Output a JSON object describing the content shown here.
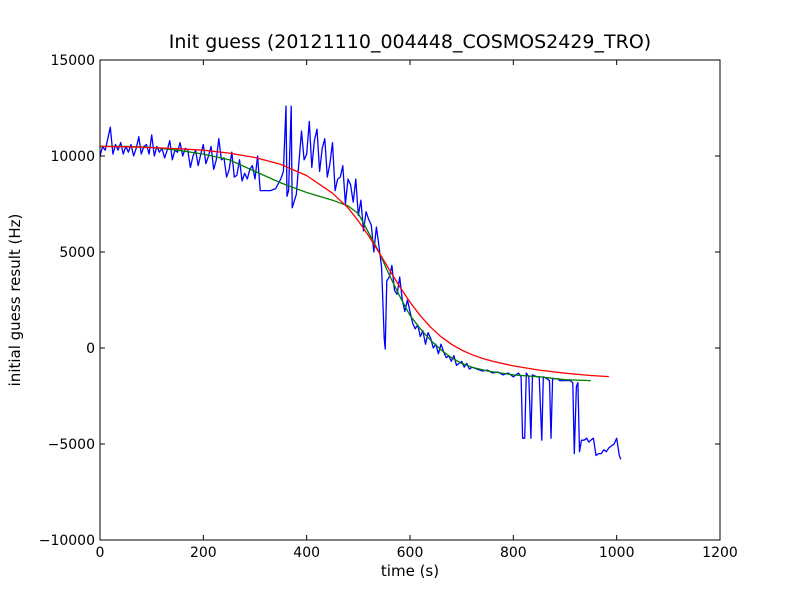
{
  "chart_data": {
    "type": "line",
    "title": "Init guess (20121110_004448_COSMOS2429_TRO)",
    "xlabel": "time (s)",
    "ylabel": "initial guess result (Hz)",
    "xlim": [
      0,
      1200
    ],
    "ylim": [
      -10000,
      15000
    ],
    "xticks": [
      0,
      200,
      400,
      600,
      800,
      1000,
      1200
    ],
    "yticks": [
      -10000,
      -5000,
      0,
      5000,
      10000,
      15000
    ],
    "grid": false,
    "legend": "none",
    "series": [
      {
        "color": "#0000ff",
        "points": [
          [
            0,
            10000
          ],
          [
            5,
            10500
          ],
          [
            10,
            10300
          ],
          [
            15,
            10900
          ],
          [
            20,
            11500
          ],
          [
            25,
            10100
          ],
          [
            30,
            10600
          ],
          [
            35,
            10300
          ],
          [
            40,
            10700
          ],
          [
            45,
            10100
          ],
          [
            50,
            10500
          ],
          [
            55,
            10200
          ],
          [
            60,
            10600
          ],
          [
            65,
            10000
          ],
          [
            70,
            10400
          ],
          [
            75,
            11000
          ],
          [
            80,
            10100
          ],
          [
            85,
            10500
          ],
          [
            90,
            10600
          ],
          [
            95,
            10100
          ],
          [
            100,
            11100
          ],
          [
            105,
            10000
          ],
          [
            110,
            10500
          ],
          [
            115,
            10200
          ],
          [
            120,
            10400
          ],
          [
            125,
            9900
          ],
          [
            130,
            10300
          ],
          [
            135,
            10800
          ],
          [
            140,
            9800
          ],
          [
            145,
            10300
          ],
          [
            150,
            10200
          ],
          [
            155,
            10700
          ],
          [
            160,
            10000
          ],
          [
            165,
            10400
          ],
          [
            170,
            10300
          ],
          [
            175,
            9400
          ],
          [
            180,
            10000
          ],
          [
            185,
            10300
          ],
          [
            190,
            9500
          ],
          [
            195,
            10100
          ],
          [
            200,
            10600
          ],
          [
            205,
            9600
          ],
          [
            210,
            10000
          ],
          [
            215,
            10500
          ],
          [
            220,
            9300
          ],
          [
            225,
            9800
          ],
          [
            230,
            10900
          ],
          [
            235,
            9800
          ],
          [
            240,
            9900
          ],
          [
            245,
            8900
          ],
          [
            250,
            9300
          ],
          [
            255,
            10200
          ],
          [
            260,
            8900
          ],
          [
            265,
            9000
          ],
          [
            270,
            9800
          ],
          [
            275,
            8700
          ],
          [
            280,
            9100
          ],
          [
            285,
            8800
          ],
          [
            290,
            9300
          ],
          [
            295,
            9500
          ],
          [
            300,
            8800
          ],
          [
            305,
            10000
          ],
          [
            310,
            8200
          ],
          [
            320,
            8200
          ],
          [
            330,
            8200
          ],
          [
            340,
            8300
          ],
          [
            350,
            8800
          ],
          [
            355,
            9200
          ],
          [
            360,
            12600
          ],
          [
            362,
            7900
          ],
          [
            365,
            8200
          ],
          [
            370,
            12600
          ],
          [
            372,
            7300
          ],
          [
            380,
            8000
          ],
          [
            390,
            11300
          ],
          [
            395,
            9800
          ],
          [
            400,
            10100
          ],
          [
            405,
            11800
          ],
          [
            410,
            9400
          ],
          [
            415,
            10800
          ],
          [
            420,
            11400
          ],
          [
            425,
            9200
          ],
          [
            430,
            10400
          ],
          [
            435,
            10900
          ],
          [
            440,
            8900
          ],
          [
            445,
            9600
          ],
          [
            450,
            10700
          ],
          [
            455,
            8200
          ],
          [
            460,
            8800
          ],
          [
            465,
            8900
          ],
          [
            470,
            9500
          ],
          [
            475,
            7500
          ],
          [
            480,
            8800
          ],
          [
            485,
            8500
          ],
          [
            490,
            7600
          ],
          [
            495,
            8800
          ],
          [
            500,
            6900
          ],
          [
            505,
            7700
          ],
          [
            510,
            6100
          ],
          [
            515,
            7100
          ],
          [
            520,
            6700
          ],
          [
            525,
            6400
          ],
          [
            530,
            5000
          ],
          [
            535,
            6300
          ],
          [
            540,
            5300
          ],
          [
            545,
            4200
          ],
          [
            550,
            500
          ],
          [
            552,
            -50
          ],
          [
            555,
            3500
          ],
          [
            560,
            3700
          ],
          [
            565,
            4300
          ],
          [
            570,
            3000
          ],
          [
            575,
            2800
          ],
          [
            580,
            3700
          ],
          [
            585,
            2500
          ],
          [
            590,
            1900
          ],
          [
            595,
            2500
          ],
          [
            600,
            1900
          ],
          [
            605,
            1300
          ],
          [
            610,
            1000
          ],
          [
            615,
            1200
          ],
          [
            620,
            600
          ],
          [
            625,
            900
          ],
          [
            630,
            200
          ],
          [
            635,
            800
          ],
          [
            640,
            500
          ],
          [
            645,
            0
          ],
          [
            650,
            200
          ],
          [
            655,
            -300
          ],
          [
            660,
            200
          ],
          [
            665,
            -200
          ],
          [
            670,
            -500
          ],
          [
            675,
            -400
          ],
          [
            680,
            -700
          ],
          [
            685,
            -400
          ],
          [
            690,
            -900
          ],
          [
            695,
            -800
          ],
          [
            700,
            -700
          ],
          [
            705,
            -1000
          ],
          [
            710,
            -800
          ],
          [
            715,
            -1100
          ],
          [
            720,
            -1000
          ],
          [
            730,
            -1100
          ],
          [
            740,
            -1200
          ],
          [
            750,
            -1150
          ],
          [
            760,
            -1300
          ],
          [
            770,
            -1250
          ],
          [
            780,
            -1400
          ],
          [
            790,
            -1300
          ],
          [
            800,
            -1500
          ],
          [
            810,
            -1300
          ],
          [
            815,
            -1500
          ],
          [
            818,
            -4700
          ],
          [
            822,
            -4700
          ],
          [
            825,
            -1300
          ],
          [
            830,
            -1500
          ],
          [
            834,
            -4700
          ],
          [
            837,
            -1400
          ],
          [
            845,
            -1500
          ],
          [
            850,
            -1500
          ],
          [
            855,
            -4800
          ],
          [
            858,
            -1500
          ],
          [
            865,
            -1600
          ],
          [
            870,
            -1700
          ],
          [
            873,
            -4700
          ],
          [
            876,
            -1600
          ],
          [
            885,
            -1600
          ],
          [
            890,
            -1700
          ],
          [
            900,
            -1700
          ],
          [
            910,
            -1700
          ],
          [
            915,
            -1800
          ],
          [
            918,
            -5500
          ],
          [
            922,
            -2000
          ],
          [
            925,
            -1800
          ],
          [
            928,
            -5400
          ],
          [
            932,
            -4800
          ],
          [
            937,
            -4800
          ],
          [
            942,
            -4700
          ],
          [
            946,
            -4900
          ],
          [
            950,
            -4800
          ],
          [
            955,
            -4700
          ],
          [
            960,
            -5600
          ],
          [
            965,
            -5500
          ],
          [
            970,
            -5500
          ],
          [
            975,
            -5300
          ],
          [
            980,
            -5400
          ],
          [
            985,
            -5200
          ],
          [
            990,
            -5100
          ],
          [
            995,
            -5000
          ],
          [
            1000,
            -4700
          ],
          [
            1005,
            -5600
          ],
          [
            1008,
            -5800
          ]
        ]
      },
      {
        "color": "#008000",
        "points": [
          [
            0,
            10500
          ],
          [
            50,
            10500
          ],
          [
            100,
            10450
          ],
          [
            150,
            10300
          ],
          [
            200,
            10100
          ],
          [
            250,
            9800
          ],
          [
            300,
            9200
          ],
          [
            350,
            8600
          ],
          [
            400,
            8100
          ],
          [
            450,
            7700
          ],
          [
            480,
            7400
          ],
          [
            500,
            7000
          ],
          [
            520,
            6000
          ],
          [
            540,
            5000
          ],
          [
            560,
            3800
          ],
          [
            580,
            2700
          ],
          [
            600,
            1700
          ],
          [
            620,
            1000
          ],
          [
            640,
            400
          ],
          [
            660,
            -100
          ],
          [
            680,
            -500
          ],
          [
            700,
            -800
          ],
          [
            720,
            -1000
          ],
          [
            750,
            -1200
          ],
          [
            800,
            -1400
          ],
          [
            850,
            -1500
          ],
          [
            900,
            -1650
          ],
          [
            950,
            -1700
          ]
        ]
      },
      {
        "color": "#ff0000",
        "points": [
          [
            0,
            10500
          ],
          [
            50,
            10480
          ],
          [
            100,
            10440
          ],
          [
            150,
            10380
          ],
          [
            200,
            10300
          ],
          [
            250,
            10150
          ],
          [
            300,
            9920
          ],
          [
            350,
            9560
          ],
          [
            400,
            8980
          ],
          [
            450,
            8060
          ],
          [
            480,
            7300
          ],
          [
            500,
            6620
          ],
          [
            520,
            5840
          ],
          [
            540,
            4980
          ],
          [
            560,
            4080
          ],
          [
            580,
            3200
          ],
          [
            600,
            2390
          ],
          [
            620,
            1680
          ],
          [
            640,
            1080
          ],
          [
            660,
            590
          ],
          [
            680,
            200
          ],
          [
            700,
            -110
          ],
          [
            720,
            -350
          ],
          [
            740,
            -540
          ],
          [
            760,
            -690
          ],
          [
            800,
            -930
          ],
          [
            850,
            -1150
          ],
          [
            900,
            -1310
          ],
          [
            950,
            -1430
          ],
          [
            985,
            -1490
          ]
        ]
      }
    ]
  }
}
